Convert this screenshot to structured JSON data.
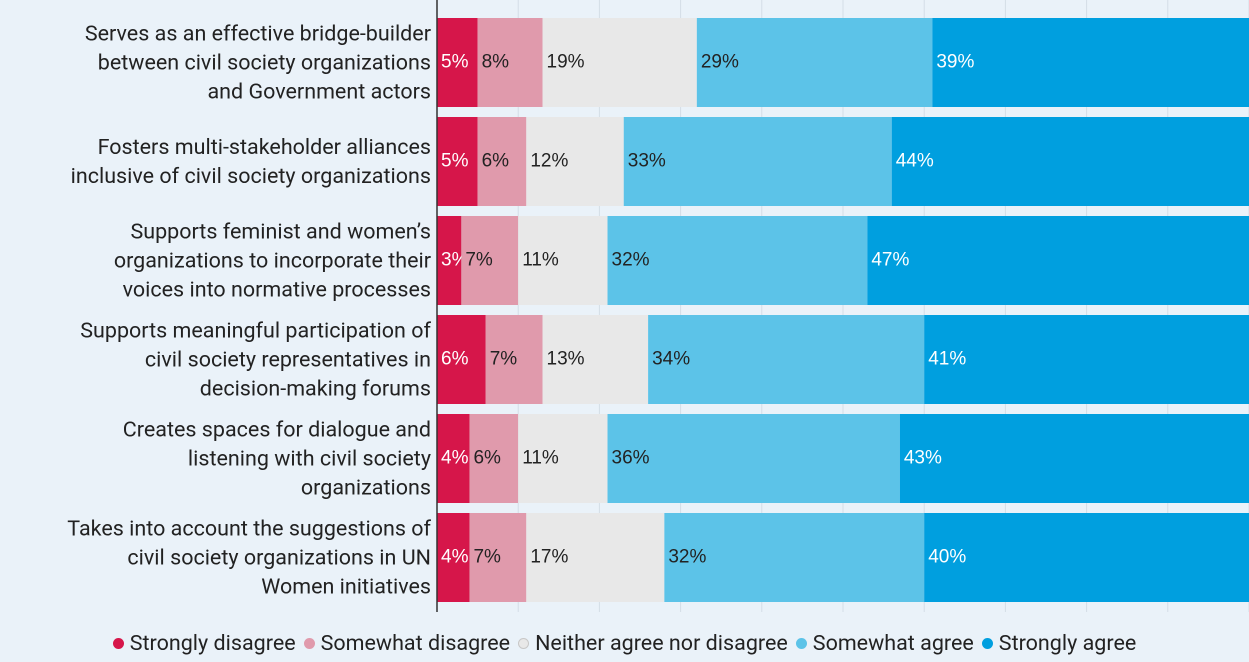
{
  "chart_data": {
    "type": "stacked-bar-horizontal",
    "categories": [
      "Serves as an effective bridge-builder\nbetween civil society organizations\nand Government actors",
      "Fosters multi-stakeholder alliances\ninclusive of civil society organizations",
      "Supports feminist and women’s\norganizations to incorporate their\nvoices into normative processes",
      "Supports meaningful participation of\ncivil society representatives in\ndecision-making forums",
      "Creates spaces for dialogue and\nlistening with civil society\norganizations",
      "Takes into account the suggestions of\ncivil society organizations in UN\nWomen initiatives"
    ],
    "series": [
      {
        "name": "Strongly disagree",
        "color": "#d6164a",
        "label_color": "#ffffff",
        "values": [
          5,
          5,
          3,
          6,
          4,
          4
        ],
        "value_labels": [
          "5%",
          "5%",
          "3%",
          "6%",
          "4%",
          "4%"
        ]
      },
      {
        "name": "Somewhat disagree",
        "color": "#e09aac",
        "label_color": "#222222",
        "values": [
          8,
          6,
          7,
          7,
          6,
          7
        ],
        "value_labels": [
          "8%",
          "6%",
          "7%",
          "7%",
          "6%",
          "7%"
        ]
      },
      {
        "name": "Neither agree nor disagree",
        "color": "#e8e8e8",
        "label_color": "#222222",
        "values": [
          19,
          12,
          11,
          13,
          11,
          17
        ],
        "value_labels": [
          "19%",
          "12%",
          "11%",
          "13%",
          "11%",
          "17%"
        ]
      },
      {
        "name": "Somewhat agree",
        "color": "#5cc3e8",
        "label_color": "#222222",
        "values": [
          29,
          33,
          32,
          34,
          36,
          32
        ],
        "value_labels": [
          "29%",
          "33%",
          "32%",
          "34%",
          "36%",
          "32%"
        ]
      },
      {
        "name": "Strongly agree",
        "color": "#009fdf",
        "label_color": "#ffffff",
        "values": [
          39,
          44,
          47,
          41,
          43,
          40
        ],
        "value_labels": [
          "39%",
          "44%",
          "47%",
          "41%",
          "43%",
          "40%"
        ]
      }
    ],
    "xlim": [
      0,
      100
    ],
    "xticks": [
      0,
      10,
      20,
      30,
      40,
      50,
      60,
      70,
      80,
      90,
      100
    ],
    "grid": true,
    "show_tick_labels": false,
    "legend": "bottom"
  }
}
